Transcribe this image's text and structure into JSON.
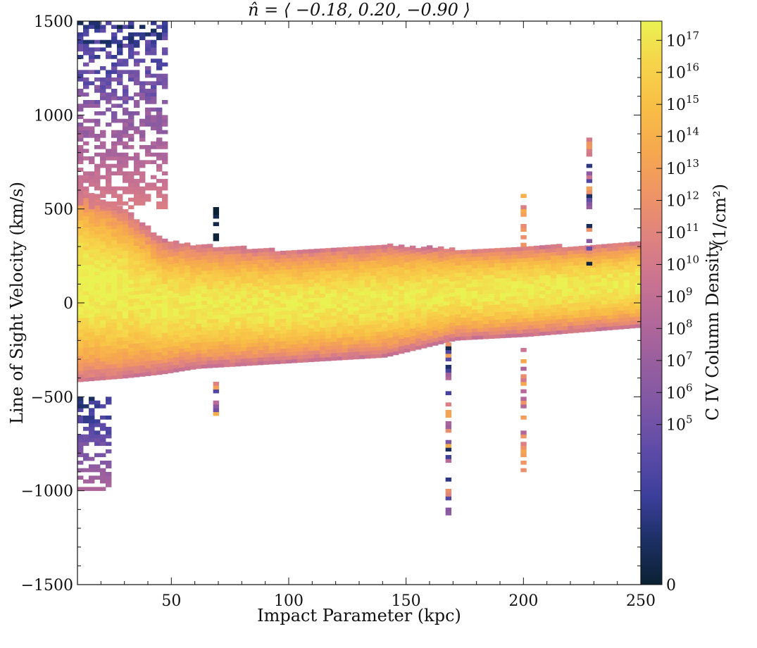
{
  "chart_data": {
    "type": "heatmap",
    "title": "n̂ = ⟨ −0.18, 0.20, −0.90 ⟩",
    "xlabel": "Impact Parameter (kpc)",
    "ylabel": "Line of Sight Velocity (km/s)",
    "colorbar_label": "C IV Column Density",
    "colorbar_unit": "(1/cm²)",
    "xlim": [
      10,
      250
    ],
    "ylim": [
      -1500,
      1500
    ],
    "x_ticks": [
      50,
      100,
      150,
      200,
      250
    ],
    "y_ticks": [
      -1500,
      -1000,
      -500,
      0,
      500,
      1000,
      1500
    ],
    "y_tick_labels": [
      "−1500",
      "−1000",
      "−500",
      "0",
      "500",
      "1000",
      "1500"
    ],
    "colorbar_ticks": [
      "0",
      "10^5",
      "10^6",
      "10^7",
      "10^8",
      "10^9",
      "10^10",
      "10^11",
      "10^12",
      "10^13",
      "10^14",
      "10^15",
      "10^16",
      "10^17"
    ],
    "colorbar_tick_values_log10": [
      0,
      5,
      6,
      7,
      8,
      9,
      10,
      11,
      12,
      13,
      14,
      15,
      16,
      17
    ],
    "colorbar_range_log10": [
      0,
      17.6
    ],
    "colormap": [
      "#0b2133",
      "#1b2f63",
      "#3a3e9a",
      "#5b4aa8",
      "#7a55a5",
      "#955d9f",
      "#b0679a",
      "#ca7391",
      "#df8280",
      "#ef9466",
      "#f6a84f",
      "#f8be46",
      "#f7d34a",
      "#eaf252"
    ],
    "band": {
      "core_log10": 17.2,
      "upper_edge_kms": [
        [
          10,
          600
        ],
        [
          30,
          480
        ],
        [
          45,
          330
        ],
        [
          60,
          300
        ],
        [
          100,
          270
        ],
        [
          140,
          300
        ],
        [
          170,
          280
        ],
        [
          200,
          290
        ],
        [
          230,
          300
        ],
        [
          250,
          320
        ]
      ],
      "lower_edge_kms": [
        [
          10,
          -420
        ],
        [
          30,
          -400
        ],
        [
          45,
          -380
        ],
        [
          60,
          -350
        ],
        [
          100,
          -320
        ],
        [
          140,
          -290
        ],
        [
          170,
          -200
        ],
        [
          200,
          -180
        ],
        [
          230,
          -150
        ],
        [
          250,
          -130
        ]
      ]
    },
    "features": [
      {
        "x": [
          10,
          48
        ],
        "y": [
          500,
          1500
        ],
        "log10": [
          0,
          10.5
        ],
        "note": "high-velocity low-column region near small impact parameter"
      },
      {
        "x": [
          10,
          22
        ],
        "y": [
          -1000,
          -500
        ],
        "log10": [
          0,
          8
        ]
      },
      {
        "x": 168,
        "y": [
          -1150,
          -200
        ],
        "log10": [
          0,
          14
        ]
      },
      {
        "x": 200,
        "y": [
          -920,
          -200
        ],
        "log10": [
          8,
          14
        ]
      },
      {
        "x": 228,
        "y": [
          200,
          920
        ],
        "log10": [
          0,
          15
        ]
      },
      {
        "x": 200,
        "y": [
          300,
          580
        ],
        "log10": [
          10,
          14
        ]
      },
      {
        "x": 69,
        "y": [
          -600,
          -400
        ],
        "log10": [
          0,
          14
        ]
      },
      {
        "x": 69,
        "y": [
          330,
          500
        ],
        "log10": [
          0,
          1
        ]
      }
    ]
  }
}
